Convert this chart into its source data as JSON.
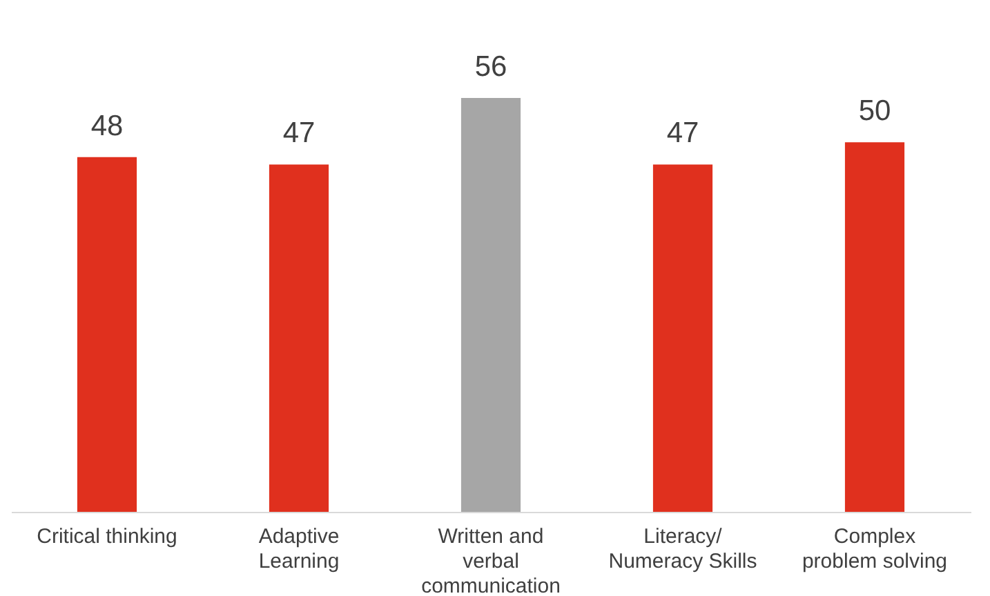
{
  "chart_data": {
    "type": "bar",
    "categories": [
      "Critical thinking",
      "Adaptive\nLearning",
      "Written and\nverbal\ncommunication",
      "Literacy/\nNumeracy Skills",
      "Complex\nproblem solving"
    ],
    "values": [
      48,
      47,
      56,
      47,
      50
    ],
    "colors": [
      "#e0301e",
      "#e0301e",
      "#a6a6a6",
      "#e0301e",
      "#e0301e"
    ],
    "data_labels": true,
    "grid": false,
    "legend": false
  }
}
